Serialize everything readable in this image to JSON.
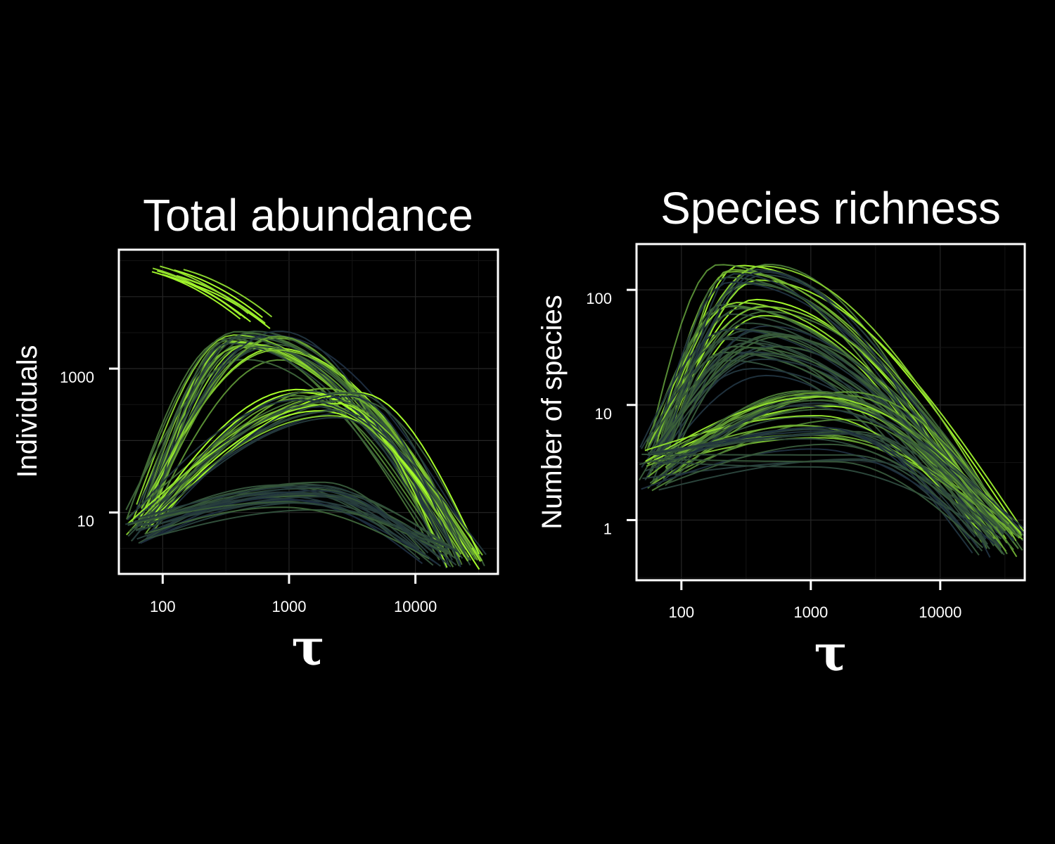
{
  "palette": {
    "background": "#000000",
    "low": "#1c2b3e",
    "mid": "#4a7a35",
    "high": "#a8ff2a",
    "frame": "#ffffff"
  },
  "chart_data": [
    {
      "type": "line",
      "title": "Total abundance",
      "xlabel": "τ",
      "ylabel": "Individuals",
      "xscale": "log",
      "yscale": "log",
      "xlim": [
        45,
        45000
      ],
      "ylim": [
        1.4,
        45000
      ],
      "xticks": [
        {
          "value": 100,
          "label": "100"
        },
        {
          "value": 1000,
          "label": "1000"
        },
        {
          "value": 10000,
          "label": "10000"
        }
      ],
      "yticks": [
        {
          "value": 10,
          "label": "10"
        },
        {
          "value": 1000,
          "label": "1000"
        }
      ],
      "grid": true,
      "series_count": 90,
      "families": [
        {
          "members": 10,
          "peak_y": 15000,
          "x_start": 70,
          "x_start_spread": 2.3,
          "y_start": 25000,
          "shape": "declining",
          "color": "high"
        },
        {
          "members": 30,
          "peak_y": 2500,
          "peak_x": 500,
          "peak_x_spread": 1.8,
          "x_start": 60,
          "y_start": 10,
          "x_end": 22000,
          "y_end": 2.5,
          "color": "mixed"
        },
        {
          "members": 25,
          "peak_y": 400,
          "peak_x": 2000,
          "peak_x_spread": 1.8,
          "x_start": 60,
          "y_start": 6,
          "x_end": 25000,
          "y_end": 2.2,
          "color": "mixed"
        },
        {
          "members": 25,
          "peak_y": 20,
          "peak_x": 1200,
          "peak_x_spread": 1.6,
          "x_start": 55,
          "y_start": 6,
          "x_end": 15000,
          "y_end": 2.5,
          "color": "low"
        }
      ]
    },
    {
      "type": "line",
      "title": "Species richness",
      "xlabel": "τ",
      "ylabel": "Number of species",
      "xscale": "log",
      "yscale": "log",
      "xlim": [
        45,
        45000
      ],
      "ylim": [
        0.3,
        250
      ],
      "xticks": [
        {
          "value": 100,
          "label": "100"
        },
        {
          "value": 1000,
          "label": "1000"
        },
        {
          "value": 10000,
          "label": "10000"
        }
      ],
      "yticks": [
        {
          "value": 1,
          "label": "1"
        },
        {
          "value": 10,
          "label": "10"
        },
        {
          "value": 100,
          "label": "100"
        }
      ],
      "grid": true,
      "series_count": 90,
      "families": [
        {
          "members": 25,
          "peak_y": 130,
          "peak_x": 300,
          "peak_x_spread": 1.6,
          "x_start": 60,
          "y_start": 4,
          "x_end": 30000,
          "y_end": 0.65,
          "color": "mixed"
        },
        {
          "members": 25,
          "peak_y": 40,
          "peak_x": 350,
          "peak_x_spread": 1.7,
          "x_start": 55,
          "y_start": 3.5,
          "x_end": 25000,
          "y_end": 0.7,
          "color": "low"
        },
        {
          "members": 25,
          "peak_y": 10,
          "peak_x": 1200,
          "peak_x_spread": 1.7,
          "x_start": 60,
          "y_start": 3,
          "x_end": 30000,
          "y_end": 0.75,
          "color": "mixed"
        },
        {
          "members": 15,
          "peak_y": 5,
          "peak_x": 1500,
          "peak_x_spread": 1.6,
          "x_start": 55,
          "y_start": 2.8,
          "x_end": 20000,
          "y_end": 0.8,
          "color": "low"
        }
      ]
    }
  ]
}
